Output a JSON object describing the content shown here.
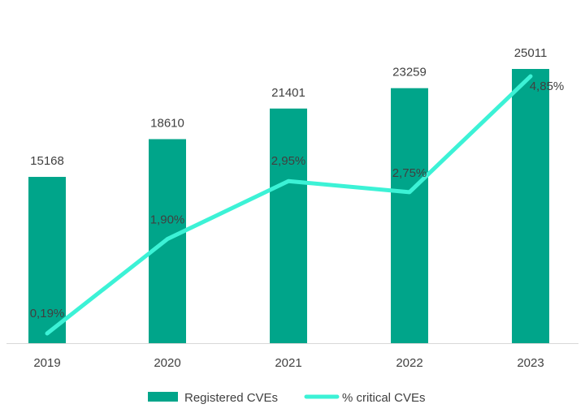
{
  "chart_data": {
    "type": "bar",
    "categories": [
      "2019",
      "2020",
      "2021",
      "2022",
      "2023"
    ],
    "series": [
      {
        "name": "Registered CVEs",
        "chart_type": "bar",
        "values": [
          15168,
          18610,
          21401,
          23259,
          25011
        ],
        "labels": [
          "15168",
          "18610",
          "21401",
          "23259",
          "25011"
        ],
        "color": "#00A58A"
      },
      {
        "name": "% critical CVEs",
        "chart_type": "line",
        "values": [
          0.19,
          1.9,
          2.95,
          2.75,
          4.85
        ],
        "labels": [
          "0,19%",
          "1,90%",
          "2,95%",
          "2,75%",
          "4,85%"
        ],
        "color": "#3CF2D6"
      }
    ],
    "title": "",
    "xlabel": "",
    "ylabel": "",
    "legend": "bottom",
    "grid": false,
    "y_axis_visible": false
  }
}
